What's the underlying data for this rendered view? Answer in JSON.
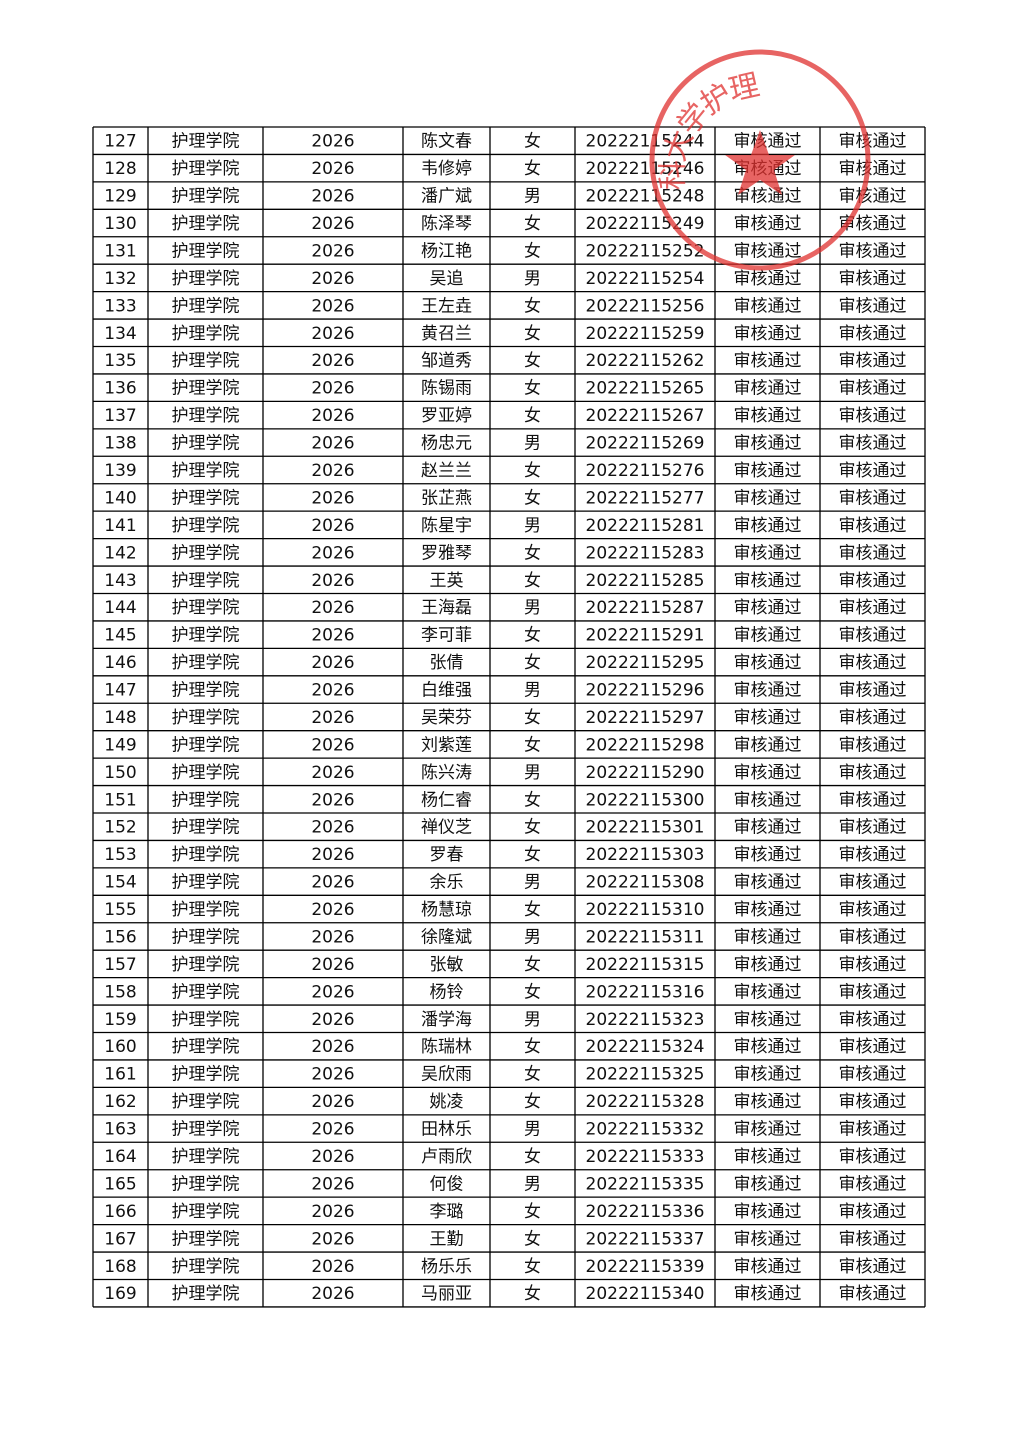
{
  "stamp": {
    "text": "科大学护理"
  },
  "table": {
    "rows": [
      [
        "127",
        "护理学院",
        "2026",
        "陈文春",
        "女",
        "20222115244",
        "审核通过",
        "审核通过"
      ],
      [
        "128",
        "护理学院",
        "2026",
        "韦修婷",
        "女",
        "20222115246",
        "审核通过",
        "审核通过"
      ],
      [
        "129",
        "护理学院",
        "2026",
        "潘广斌",
        "男",
        "20222115248",
        "审核通过",
        "审核通过"
      ],
      [
        "130",
        "护理学院",
        "2026",
        "陈泽琴",
        "女",
        "20222115249",
        "审核通过",
        "审核通过"
      ],
      [
        "131",
        "护理学院",
        "2026",
        "杨江艳",
        "女",
        "20222115252",
        "审核通过",
        "审核通过"
      ],
      [
        "132",
        "护理学院",
        "2026",
        "吴追",
        "男",
        "20222115254",
        "审核通过",
        "审核通过"
      ],
      [
        "133",
        "护理学院",
        "2026",
        "王左垚",
        "女",
        "20222115256",
        "审核通过",
        "审核通过"
      ],
      [
        "134",
        "护理学院",
        "2026",
        "黄召兰",
        "女",
        "20222115259",
        "审核通过",
        "审核通过"
      ],
      [
        "135",
        "护理学院",
        "2026",
        "邹道秀",
        "女",
        "20222115262",
        "审核通过",
        "审核通过"
      ],
      [
        "136",
        "护理学院",
        "2026",
        "陈锡雨",
        "女",
        "20222115265",
        "审核通过",
        "审核通过"
      ],
      [
        "137",
        "护理学院",
        "2026",
        "罗亚婷",
        "女",
        "20222115267",
        "审核通过",
        "审核通过"
      ],
      [
        "138",
        "护理学院",
        "2026",
        "杨忠元",
        "男",
        "20222115269",
        "审核通过",
        "审核通过"
      ],
      [
        "139",
        "护理学院",
        "2026",
        "赵兰兰",
        "女",
        "20222115276",
        "审核通过",
        "审核通过"
      ],
      [
        "140",
        "护理学院",
        "2026",
        "张芷燕",
        "女",
        "20222115277",
        "审核通过",
        "审核通过"
      ],
      [
        "141",
        "护理学院",
        "2026",
        "陈星宇",
        "男",
        "20222115281",
        "审核通过",
        "审核通过"
      ],
      [
        "142",
        "护理学院",
        "2026",
        "罗雅琴",
        "女",
        "20222115283",
        "审核通过",
        "审核通过"
      ],
      [
        "143",
        "护理学院",
        "2026",
        "王英",
        "女",
        "20222115285",
        "审核通过",
        "审核通过"
      ],
      [
        "144",
        "护理学院",
        "2026",
        "王海磊",
        "男",
        "20222115287",
        "审核通过",
        "审核通过"
      ],
      [
        "145",
        "护理学院",
        "2026",
        "李可菲",
        "女",
        "20222115291",
        "审核通过",
        "审核通过"
      ],
      [
        "146",
        "护理学院",
        "2026",
        "张倩",
        "女",
        "20222115295",
        "审核通过",
        "审核通过"
      ],
      [
        "147",
        "护理学院",
        "2026",
        "白维强",
        "男",
        "20222115296",
        "审核通过",
        "审核通过"
      ],
      [
        "148",
        "护理学院",
        "2026",
        "吴荣芬",
        "女",
        "20222115297",
        "审核通过",
        "审核通过"
      ],
      [
        "149",
        "护理学院",
        "2026",
        "刘紫莲",
        "女",
        "20222115298",
        "审核通过",
        "审核通过"
      ],
      [
        "150",
        "护理学院",
        "2026",
        "陈兴涛",
        "男",
        "20222115290",
        "审核通过",
        "审核通过"
      ],
      [
        "151",
        "护理学院",
        "2026",
        "杨仁睿",
        "女",
        "20222115300",
        "审核通过",
        "审核通过"
      ],
      [
        "152",
        "护理学院",
        "2026",
        "禅仪芝",
        "女",
        "20222115301",
        "审核通过",
        "审核通过"
      ],
      [
        "153",
        "护理学院",
        "2026",
        "罗春",
        "女",
        "20222115303",
        "审核通过",
        "审核通过"
      ],
      [
        "154",
        "护理学院",
        "2026",
        "余乐",
        "男",
        "20222115308",
        "审核通过",
        "审核通过"
      ],
      [
        "155",
        "护理学院",
        "2026",
        "杨慧琼",
        "女",
        "20222115310",
        "审核通过",
        "审核通过"
      ],
      [
        "156",
        "护理学院",
        "2026",
        "徐隆斌",
        "男",
        "20222115311",
        "审核通过",
        "审核通过"
      ],
      [
        "157",
        "护理学院",
        "2026",
        "张敏",
        "女",
        "20222115315",
        "审核通过",
        "审核通过"
      ],
      [
        "158",
        "护理学院",
        "2026",
        "杨铃",
        "女",
        "20222115316",
        "审核通过",
        "审核通过"
      ],
      [
        "159",
        "护理学院",
        "2026",
        "潘学海",
        "男",
        "20222115323",
        "审核通过",
        "审核通过"
      ],
      [
        "160",
        "护理学院",
        "2026",
        "陈瑞林",
        "女",
        "20222115324",
        "审核通过",
        "审核通过"
      ],
      [
        "161",
        "护理学院",
        "2026",
        "吴欣雨",
        "女",
        "20222115325",
        "审核通过",
        "审核通过"
      ],
      [
        "162",
        "护理学院",
        "2026",
        "姚凌",
        "女",
        "20222115328",
        "审核通过",
        "审核通过"
      ],
      [
        "163",
        "护理学院",
        "2026",
        "田林乐",
        "男",
        "20222115332",
        "审核通过",
        "审核通过"
      ],
      [
        "164",
        "护理学院",
        "2026",
        "卢雨欣",
        "女",
        "20222115333",
        "审核通过",
        "审核通过"
      ],
      [
        "165",
        "护理学院",
        "2026",
        "何俊",
        "男",
        "20222115335",
        "审核通过",
        "审核通过"
      ],
      [
        "166",
        "护理学院",
        "2026",
        "李璐",
        "女",
        "20222115336",
        "审核通过",
        "审核通过"
      ],
      [
        "167",
        "护理学院",
        "2026",
        "王勤",
        "女",
        "20222115337",
        "审核通过",
        "审核通过"
      ],
      [
        "168",
        "护理学院",
        "2026",
        "杨乐乐",
        "女",
        "20222115339",
        "审核通过",
        "审核通过"
      ],
      [
        "169",
        "护理学院",
        "2026",
        "马丽亚",
        "女",
        "20222115340",
        "审核通过",
        "审核通过"
      ]
    ]
  }
}
